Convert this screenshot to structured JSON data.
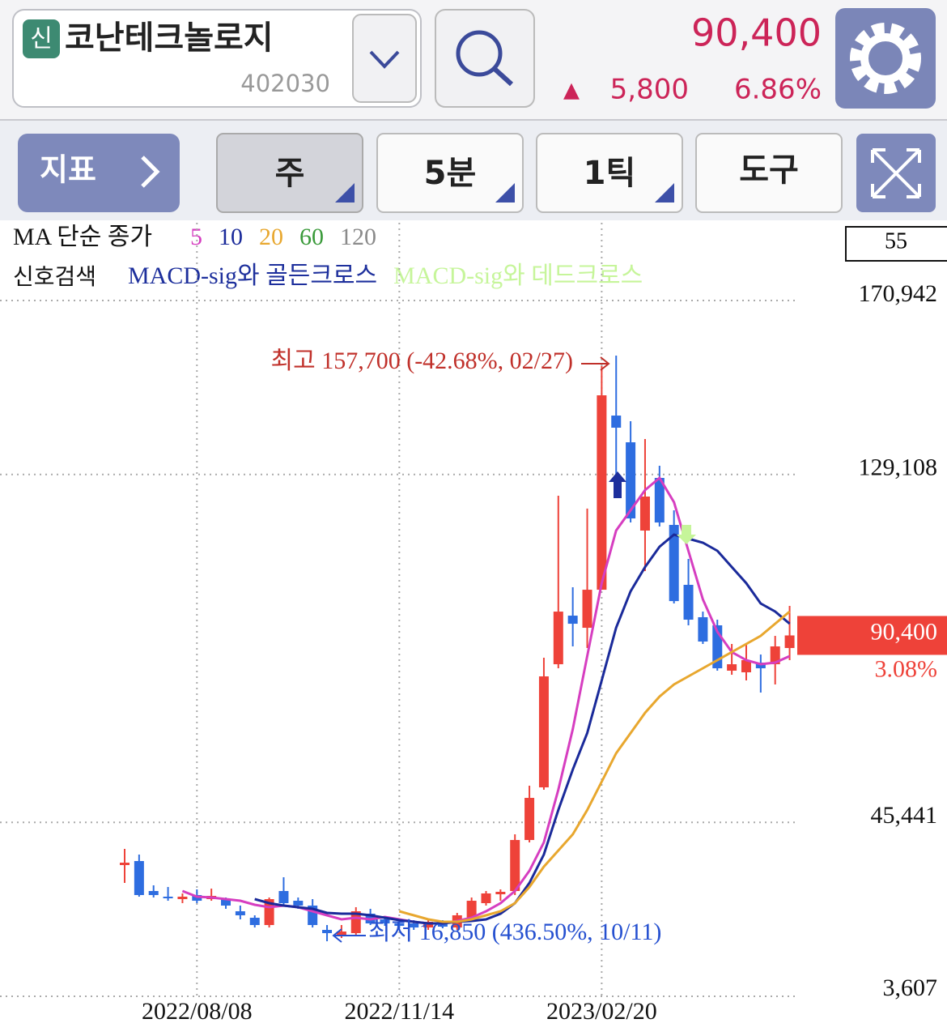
{
  "header": {
    "badge": "신",
    "name": "코난테크놀로지",
    "code": "402030",
    "price": "90,400",
    "change_mark": "▲",
    "change": "5,800",
    "change_pct": "6.86%"
  },
  "toolbar": {
    "indicator": "지표",
    "period": "주",
    "minute": "5분",
    "tick": "1틱",
    "tools": "도구"
  },
  "chart_data": {
    "type": "candlestick",
    "categories": [
      null,
      null,
      null,
      null,
      null,
      "2022/08/08",
      null,
      null,
      null,
      null,
      null,
      null,
      null,
      null,
      null,
      null,
      null,
      null,
      null,
      "2022/11/14",
      null,
      null,
      null,
      null,
      null,
      null,
      null,
      null,
      null,
      null,
      null,
      null,
      null,
      "2023/02/20",
      null,
      null,
      null,
      null,
      null,
      null,
      null,
      null,
      null,
      null,
      null,
      null,
      null
    ],
    "open": [
      35170,
      36140,
      28930,
      27570,
      26980,
      27960,
      26980,
      26980,
      24060,
      22500,
      20750,
      28930,
      26590,
      25430,
      19580,
      18220,
      18800,
      23480,
      22110,
      21140,
      21140,
      20160,
      21140,
      20160,
      22110,
      26010,
      28150,
      28930,
      41200,
      53860,
      83470,
      95160,
      92240,
      101390,
      143280,
      136850,
      115620,
      128280,
      116980,
      102570,
      94780,
      92830,
      81920,
      81530,
      83860,
      83470,
      87370
    ],
    "high": [
      39060,
      37700,
      30300,
      29900,
      28350,
      29320,
      29510,
      27370,
      25430,
      23090,
      27370,
      32240,
      27370,
      26980,
      20750,
      20750,
      25040,
      24650,
      22890,
      21530,
      21920,
      22310,
      21920,
      23670,
      27370,
      28930,
      29320,
      42570,
      54250,
      85030,
      124000,
      101980,
      120900,
      155160,
      157700,
      141920,
      137630,
      131200,
      120490,
      108800,
      96130,
      94190,
      88350,
      88350,
      85810,
      90290,
      97500
    ],
    "low": [
      30880,
      27570,
      27370,
      26590,
      26010,
      26010,
      26590,
      24650,
      22110,
      20160,
      20160,
      25430,
      24650,
      20160,
      16850,
      17630,
      18220,
      20750,
      20550,
      19970,
      19580,
      19580,
      19970,
      19580,
      21530,
      25430,
      26590,
      27960,
      40620,
      53280,
      82500,
      87760,
      87370,
      101390,
      126720,
      117560,
      105880,
      116590,
      98080,
      92830,
      88350,
      81920,
      80940,
      79580,
      76660,
      78610,
      84450
    ],
    "close": [
      35750,
      27960,
      27960,
      27180,
      27570,
      26590,
      27760,
      25430,
      23090,
      20750,
      26980,
      26010,
      25430,
      20750,
      18800,
      19190,
      24060,
      21140,
      21140,
      20550,
      20160,
      21530,
      20360,
      23090,
      26590,
      28350,
      28740,
      41200,
      51330,
      80550,
      96130,
      93210,
      101390,
      148150,
      140360,
      118540,
      123800,
      117560,
      98660,
      94190,
      88930,
      82500,
      83470,
      84450,
      82500,
      87760,
      90400
    ],
    "up_color": "#ee4239",
    "down_color": "#2e6de0",
    "ylim": [
      3607,
      189650
    ],
    "yticks": [
      {
        "value": 3607,
        "label": "3,607"
      },
      {
        "value": 45441,
        "label": "45,441"
      },
      {
        "value": 129108,
        "label": "129,108"
      },
      {
        "value": 170942,
        "label": "170,942"
      }
    ],
    "grid": true,
    "legend_title": "MA 단순 종가",
    "series": [
      {
        "name": "5",
        "color": "#d63ec0",
        "values": [
          null,
          null,
          null,
          null,
          28930,
          27570,
          27370,
          26980,
          26590,
          25620,
          25040,
          25430,
          25040,
          24060,
          23090,
          22110,
          22500,
          22110,
          22700,
          22110,
          21530,
          21140,
          21140,
          21720,
          22500,
          24060,
          26010,
          28930,
          33800,
          40620,
          53280,
          67890,
          85420,
          102960,
          115620,
          120490,
          125360,
          128280,
          122440,
          110750,
          99060,
          91270,
          86400,
          84450,
          83480,
          83870,
          85420
        ]
      },
      {
        "name": "10",
        "color": "#1a2a9a",
        "values": [
          null,
          null,
          null,
          null,
          null,
          null,
          null,
          null,
          null,
          26980,
          26010,
          25430,
          25040,
          24650,
          23670,
          23480,
          23480,
          23090,
          22500,
          21920,
          21530,
          21140,
          21140,
          21530,
          21720,
          22110,
          23480,
          26010,
          30880,
          37700,
          48410,
          58150,
          66920,
          79580,
          92240,
          101010,
          106850,
          111720,
          114640,
          113670,
          112700,
          110750,
          106850,
          102960,
          98090,
          96140,
          93220
        ]
      },
      {
        "name": "20",
        "color": "#e8a72e",
        "values": [
          null,
          null,
          null,
          null,
          null,
          null,
          null,
          null,
          null,
          null,
          null,
          null,
          null,
          null,
          null,
          null,
          null,
          null,
          null,
          24060,
          23090,
          22110,
          21530,
          21530,
          22110,
          23090,
          24060,
          26010,
          29910,
          34780,
          38670,
          42570,
          48410,
          55230,
          62050,
          66920,
          71790,
          75680,
          78610,
          80550,
          82500,
          84450,
          86400,
          88350,
          90290,
          93220,
          96140
        ]
      }
    ],
    "inactive_ma": [
      {
        "name": "60",
        "color": "#3a9a3a"
      },
      {
        "name": "120",
        "color": "#8a8a8a"
      }
    ],
    "signal_title": "신호검색",
    "signals": [
      {
        "name": "MACD-sig와 골든크로스",
        "color": "#1d2f9c"
      },
      {
        "name": "MACD-sig와 데드크로스",
        "color": "#c6f59a"
      }
    ],
    "high_label": "최고 157,700 (-42.68%, 02/27)",
    "low_label": "최저 16,850 (436.50%, 10/11)",
    "last_price": {
      "value": 90400,
      "label": "90,400"
    },
    "last_change": "3.08%",
    "top_box": 55
  }
}
